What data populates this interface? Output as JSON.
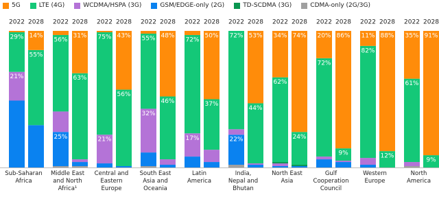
{
  "chart_data": {
    "type": "stacked-bar",
    "categories": [
      "Sub-Saharan\nAfrica",
      "Middle East\nand North\nAfrica¹",
      "Central and\nEastern\nEurope",
      "South East\nAsia and\nOceania",
      "Latin\nAmerica",
      "India,\nNepal and\nBhutan",
      "North East\nAsia",
      "Gulf\nCooperation\nCouncil",
      "Western\nEurope",
      "North\nAmerica"
    ],
    "subcategories": [
      "2022",
      "2028"
    ],
    "ylim": [
      0,
      100
    ],
    "series": [
      {
        "name": "5G",
        "color": "#ff8c0a",
        "values": [
          [
            1,
            14
          ],
          [
            3,
            31
          ],
          [
            1,
            43
          ],
          [
            2,
            48
          ],
          [
            3,
            50
          ],
          [
            0,
            53
          ],
          [
            34,
            74
          ],
          [
            20,
            86
          ],
          [
            11,
            88
          ],
          [
            35,
            91
          ]
        ],
        "value_labels": [
          [
            null,
            "14%"
          ],
          [
            null,
            "31%"
          ],
          [
            null,
            "43%"
          ],
          [
            null,
            "48%"
          ],
          [
            null,
            "50%"
          ],
          [
            null,
            "53%"
          ],
          [
            "34%",
            "74%"
          ],
          [
            "20%",
            "86%"
          ],
          [
            "11%",
            "88%"
          ],
          [
            "35%",
            "91%"
          ]
        ]
      },
      {
        "name": "LTE (4G)",
        "color": "#14c878",
        "values": [
          [
            29,
            55
          ],
          [
            56,
            63
          ],
          [
            75,
            56
          ],
          [
            55,
            46
          ],
          [
            72,
            37
          ],
          [
            72,
            44
          ],
          [
            62,
            24
          ],
          [
            72,
            9
          ],
          [
            82,
            12
          ],
          [
            61,
            9
          ]
        ],
        "value_labels": [
          [
            "29%",
            "55%"
          ],
          [
            "56%",
            "63%"
          ],
          [
            "75%",
            "56%"
          ],
          [
            "55%",
            "46%"
          ],
          [
            "72%",
            "37%"
          ],
          [
            "72%",
            "44%"
          ],
          [
            "62%",
            "24%"
          ],
          [
            "72%",
            "9%"
          ],
          [
            "82%",
            "12%"
          ],
          [
            "61%",
            "9%"
          ]
        ]
      },
      {
        "name": "WCDMA/HSPA (3G)",
        "color": "#b473d7",
        "values": [
          [
            21,
            0
          ],
          [
            15,
            2
          ],
          [
            21,
            0
          ],
          [
            32,
            4
          ],
          [
            17,
            9
          ],
          [
            4,
            1
          ],
          [
            2,
            0
          ],
          [
            2,
            1
          ],
          [
            5,
            0
          ],
          [
            3,
            0
          ]
        ],
        "value_labels": [
          [
            "21%",
            null
          ],
          [
            null,
            null
          ],
          [
            "21%",
            null
          ],
          [
            "32%",
            null
          ],
          [
            "17%",
            null
          ],
          [
            null,
            null
          ],
          [
            null,
            null
          ],
          [
            null,
            null
          ],
          [
            null,
            null
          ],
          [
            null,
            null
          ]
        ]
      },
      {
        "name": "GSM/EDGE-only (2G)",
        "color": "#0a82f0",
        "values": [
          [
            49,
            31
          ],
          [
            25,
            3
          ],
          [
            3,
            1
          ],
          [
            10,
            2
          ],
          [
            8,
            4
          ],
          [
            22,
            2
          ],
          [
            1,
            1
          ],
          [
            6,
            4
          ],
          [
            2,
            0
          ],
          [
            0,
            0
          ]
        ],
        "value_labels": [
          [
            null,
            null
          ],
          [
            "25%",
            null
          ],
          [
            null,
            null
          ],
          [
            null,
            null
          ],
          [
            null,
            null
          ],
          [
            "22%",
            null
          ],
          [
            null,
            null
          ],
          [
            null,
            null
          ],
          [
            null,
            null
          ],
          [
            null,
            null
          ]
        ]
      },
      {
        "name": "TD-SCDMA (3G)",
        "color": "#0a9650",
        "values": [
          [
            0,
            0
          ],
          [
            0,
            0
          ],
          [
            0,
            0
          ],
          [
            0,
            0
          ],
          [
            0,
            0
          ],
          [
            0,
            0
          ],
          [
            1,
            1
          ],
          [
            0,
            0
          ],
          [
            0,
            0
          ],
          [
            0,
            0
          ]
        ]
      },
      {
        "name": "CDMA-only (2G/3G)",
        "color": "#a0a0a0",
        "values": [
          [
            0,
            0
          ],
          [
            1,
            1
          ],
          [
            0,
            0
          ],
          [
            1,
            0
          ],
          [
            0,
            0
          ],
          [
            2,
            0
          ],
          [
            0,
            0
          ],
          [
            0,
            0
          ],
          [
            0,
            0
          ],
          [
            1,
            0
          ]
        ]
      }
    ]
  }
}
